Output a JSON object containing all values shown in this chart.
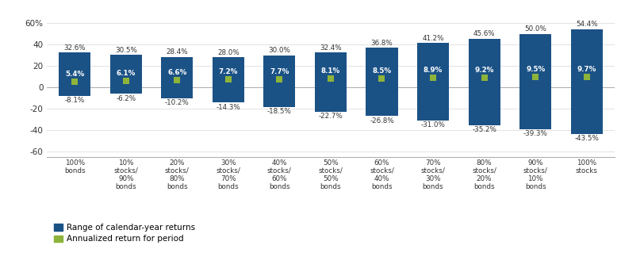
{
  "categories": [
    "100%\nbonds",
    "10%\nstocks/\n90%\nbonds",
    "20%\nstocks/\n80%\nbonds",
    "30%\nstocks/\n70%\nbonds",
    "40%\nstocks/\n60%\nbonds",
    "50%\nstocks/\n50%\nbonds",
    "60%\nstocks/\n40%\nbonds",
    "70%\nstocks/\n30%\nbonds",
    "80%\nstocks/\n20%\nbonds",
    "90%\nstocks/\n10%\nbonds",
    "100%\nstocks"
  ],
  "max_vals": [
    32.6,
    30.5,
    28.4,
    28.0,
    30.0,
    32.4,
    36.8,
    41.2,
    45.6,
    50.0,
    54.4
  ],
  "min_vals": [
    -8.1,
    -6.2,
    -10.2,
    -14.3,
    -18.5,
    -22.7,
    -26.8,
    -31.0,
    -35.2,
    -39.3,
    -43.5
  ],
  "annualized": [
    5.4,
    6.1,
    6.6,
    7.2,
    7.7,
    8.1,
    8.5,
    8.9,
    9.2,
    9.5,
    9.7
  ],
  "bar_color": "#1b5286",
  "dot_color": "#8db33a",
  "ylim": [
    -65,
    65
  ],
  "yticks": [
    -60,
    -40,
    -20,
    0,
    20,
    40,
    60
  ],
  "ytick_labels": [
    "-60",
    "-40",
    "-20",
    "0",
    "20",
    "40",
    "60%"
  ],
  "background_color": "#ffffff",
  "grid_color": "#b0b0b0",
  "label_color": "#333333",
  "legend_bar_label": "Range of calendar-year returns",
  "legend_dot_label": "Annualized return for period"
}
